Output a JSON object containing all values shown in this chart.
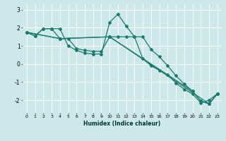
{
  "xlabel": "Humidex (Indice chaleur)",
  "background_color": "#cde8e8",
  "grid_color": "#ffffff",
  "line_color": "#1a7a6e",
  "xlim": [
    -0.5,
    23.5
  ],
  "ylim": [
    -2.7,
    3.3
  ],
  "yticks": [
    -2,
    -1,
    0,
    1,
    2,
    3
  ],
  "xticks": [
    0,
    1,
    2,
    3,
    4,
    5,
    6,
    7,
    8,
    9,
    10,
    11,
    12,
    13,
    14,
    15,
    16,
    17,
    18,
    19,
    20,
    21,
    22,
    23
  ],
  "line1_x": [
    0,
    1,
    2,
    3,
    4,
    5,
    6,
    7,
    8,
    9,
    10,
    11,
    12,
    13,
    14,
    15,
    16,
    17,
    18,
    19,
    20,
    21,
    22,
    23
  ],
  "line1_y": [
    1.75,
    1.55,
    1.95,
    1.95,
    1.95,
    1.0,
    0.75,
    0.6,
    0.55,
    0.55,
    2.3,
    2.75,
    2.1,
    1.5,
    0.3,
    -0.1,
    -0.35,
    -0.6,
    -1.05,
    -1.4,
    -1.65,
    -2.15,
    -2.0,
    -1.65
  ],
  "line2_x": [
    0,
    1,
    2,
    3,
    4,
    5,
    6,
    7,
    8,
    9,
    10,
    11,
    12,
    13,
    14,
    15,
    16,
    17,
    18,
    19,
    20,
    21,
    22,
    23
  ],
  "line2_y": [
    1.75,
    1.55,
    1.95,
    1.95,
    1.4,
    1.4,
    0.85,
    0.75,
    0.7,
    0.7,
    1.5,
    1.5,
    1.5,
    1.5,
    1.5,
    0.8,
    0.4,
    -0.1,
    -0.65,
    -1.1,
    -1.5,
    -2.05,
    -2.2,
    -1.65
  ],
  "line3_x": [
    0,
    4,
    10,
    22,
    23
  ],
  "line3_y": [
    1.75,
    1.4,
    1.5,
    -2.2,
    -1.65
  ],
  "line4_x": [
    0,
    4,
    10,
    20,
    21,
    22,
    23
  ],
  "line4_y": [
    1.75,
    1.4,
    1.5,
    -1.5,
    -2.05,
    -2.2,
    -1.65
  ]
}
